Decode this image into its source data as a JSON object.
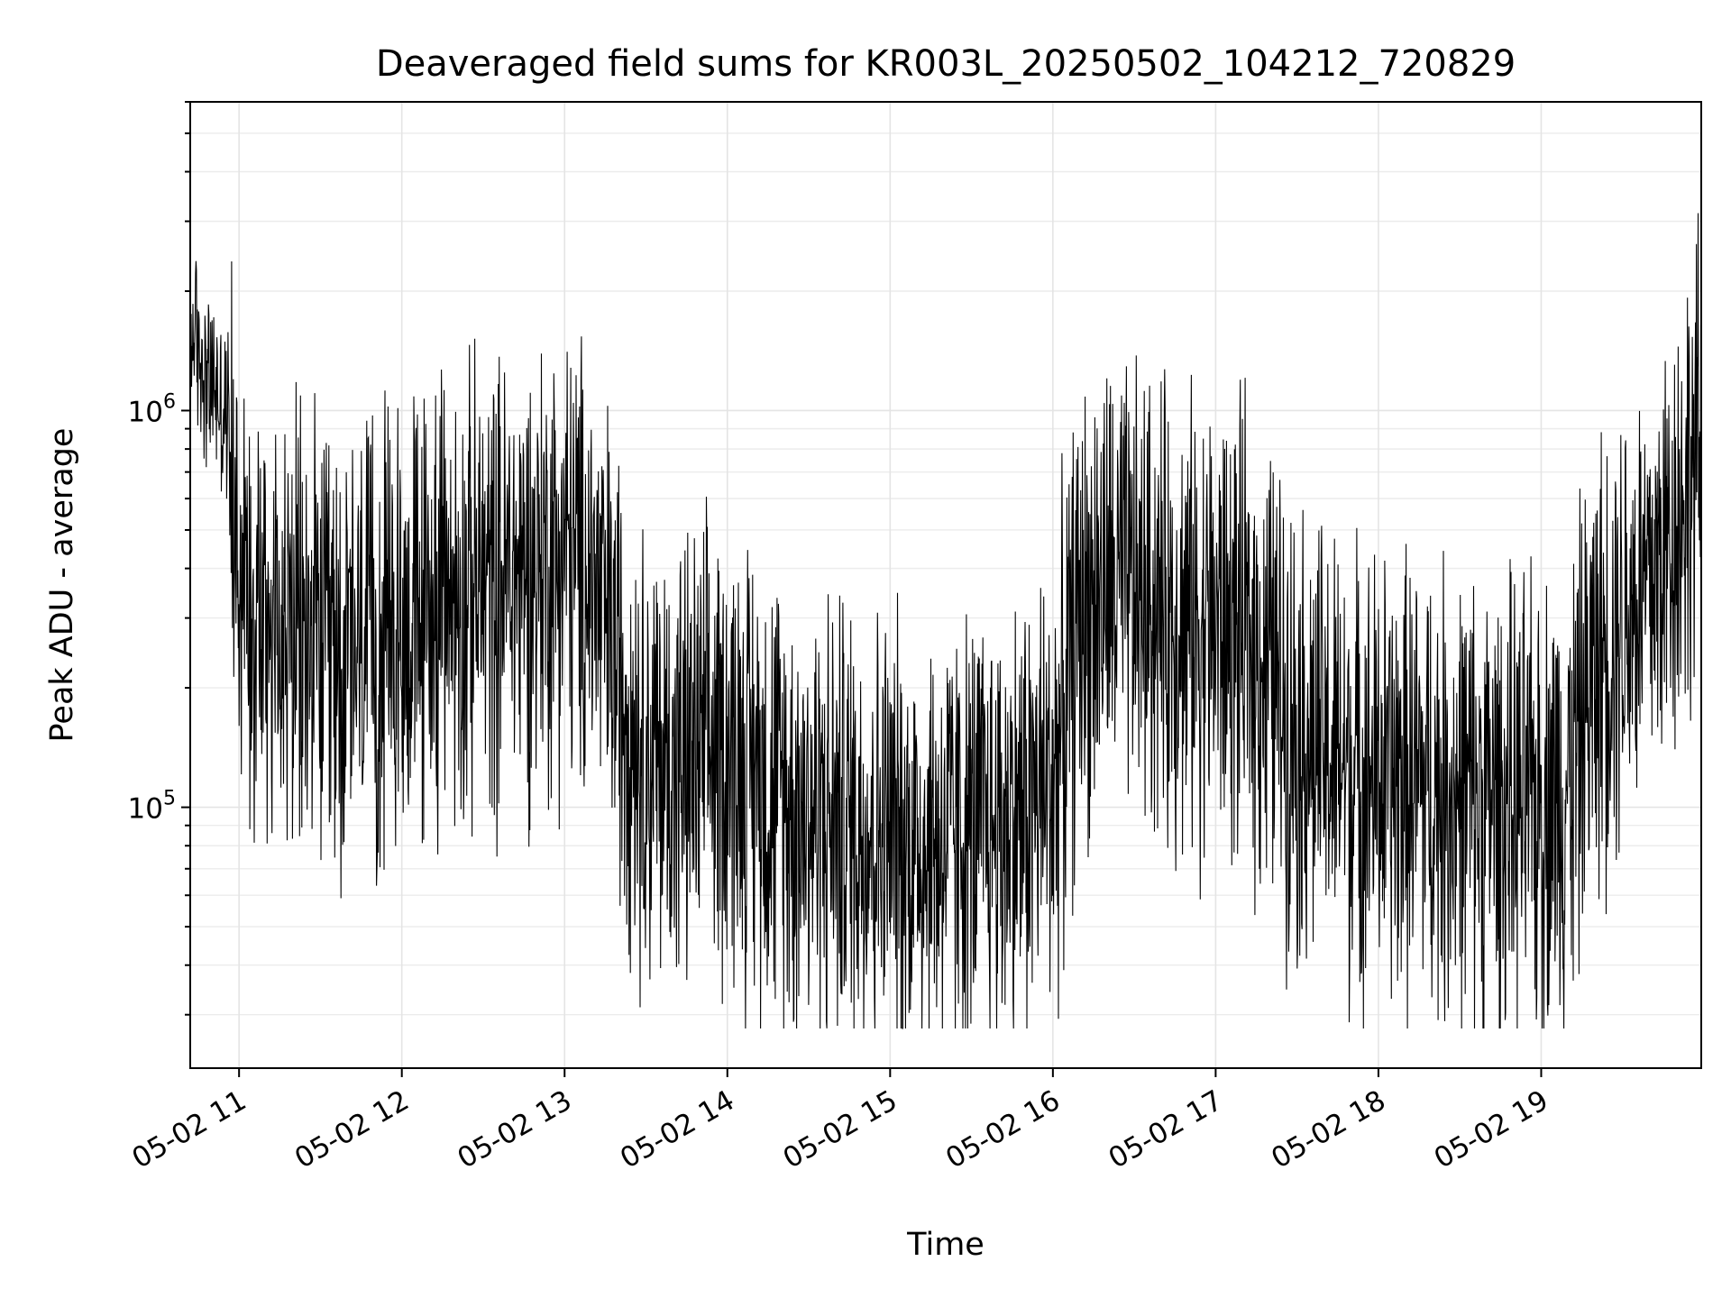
{
  "chart_data": {
    "type": "line",
    "title": "Deaveraged field sums for KR003L_20250502_104212_720829",
    "xlabel": "Time",
    "ylabel": "Peak ADU - average",
    "yscale": "log",
    "ylim": [
      22000,
      6000000
    ],
    "xlim": [
      "2025-05-02 10:42",
      "2025-05-02 19:59"
    ],
    "x_ticks": [
      "05-02 11",
      "05-02 12",
      "05-02 13",
      "05-02 14",
      "05-02 15",
      "05-02 16",
      "05-02 17",
      "05-02 18",
      "05-02 19"
    ],
    "x_tick_times": [
      "2025-05-02 11:00",
      "2025-05-02 12:00",
      "2025-05-02 13:00",
      "2025-05-02 14:00",
      "2025-05-02 15:00",
      "2025-05-02 16:00",
      "2025-05-02 17:00",
      "2025-05-02 18:00",
      "2025-05-02 19:00"
    ],
    "y_ticks": [
      "10^5",
      "10^6"
    ],
    "y_tick_values": [
      100000,
      1000000
    ],
    "grid": "major and minor",
    "line_color": "#000000",
    "series": [
      {
        "x": [
          "2025-05-02 10:42",
          "2025-05-02 10:50",
          "2025-05-02 10:56",
          "2025-05-02 11:00",
          "2025-05-02 11:10",
          "2025-05-02 11:20",
          "2025-05-02 11:30",
          "2025-05-02 11:40",
          "2025-05-02 11:50",
          "2025-05-02 11:55",
          "2025-05-02 12:00",
          "2025-05-02 12:04",
          "2025-05-02 12:10",
          "2025-05-02 12:20",
          "2025-05-02 12:30",
          "2025-05-02 12:40",
          "2025-05-02 12:50",
          "2025-05-02 13:00",
          "2025-05-02 13:10",
          "2025-05-02 13:20",
          "2025-05-02 13:30",
          "2025-05-02 13:40",
          "2025-05-02 13:50",
          "2025-05-02 14:00",
          "2025-05-02 14:10",
          "2025-05-02 14:20",
          "2025-05-02 14:30",
          "2025-05-02 14:40",
          "2025-05-02 14:50",
          "2025-05-02 15:00",
          "2025-05-02 15:10",
          "2025-05-02 15:20",
          "2025-05-02 15:30",
          "2025-05-02 15:40",
          "2025-05-02 15:50",
          "2025-05-02 16:00",
          "2025-05-02 16:10",
          "2025-05-02 16:20",
          "2025-05-02 16:30",
          "2025-05-02 16:40",
          "2025-05-02 16:50",
          "2025-05-02 17:00",
          "2025-05-02 17:10",
          "2025-05-02 17:20",
          "2025-05-02 17:30",
          "2025-05-02 17:40",
          "2025-05-02 17:50",
          "2025-05-02 18:00",
          "2025-05-02 18:10",
          "2025-05-02 18:20",
          "2025-05-02 18:30",
          "2025-05-02 18:40",
          "2025-05-02 18:50",
          "2025-05-02 19:00",
          "2025-05-02 19:10",
          "2025-05-02 19:20",
          "2025-05-02 19:30",
          "2025-05-02 19:40",
          "2025-05-02 19:50",
          "2025-05-02 19:59"
        ],
        "y": [
          1700000,
          1200000,
          1000000,
          450000,
          350000,
          300000,
          280000,
          260000,
          280000,
          300000,
          320000,
          330000,
          350000,
          380000,
          400000,
          420000,
          450000,
          500000,
          420000,
          250000,
          150000,
          140000,
          150000,
          160000,
          140000,
          120000,
          110000,
          105000,
          100000,
          95000,
          90000,
          92000,
          95000,
          100000,
          110000,
          130000,
          350000,
          400000,
          380000,
          350000,
          330000,
          320000,
          300000,
          250000,
          180000,
          150000,
          140000,
          130000,
          130000,
          125000,
          120000,
          115000,
          110000,
          115000,
          130000,
          250000,
          350000,
          400000,
          600000,
          900000
        ]
      }
    ]
  }
}
